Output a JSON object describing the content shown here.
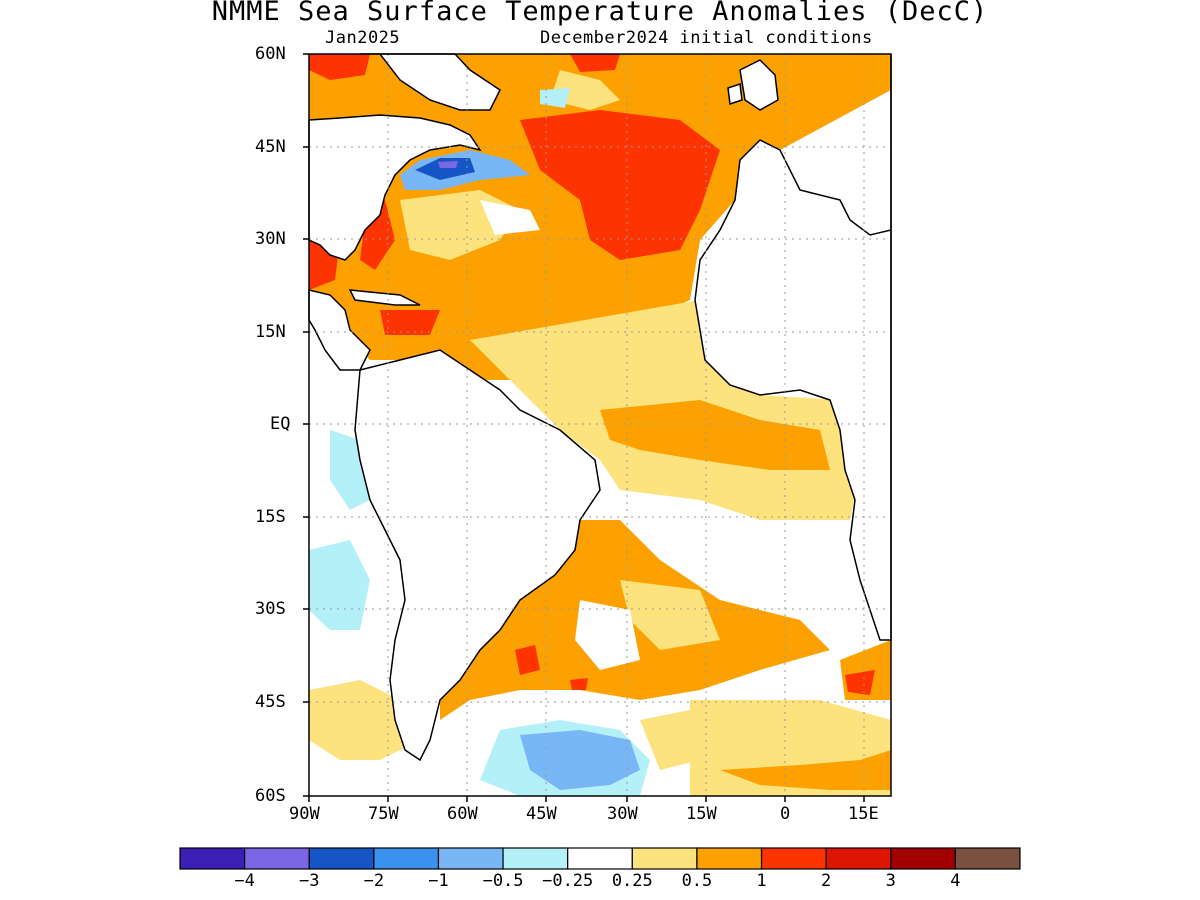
{
  "title": "NMME Sea Surface Temperature Anomalies (DecC)",
  "subtitle_left": "Jan2025",
  "subtitle_right": "December2024 initial conditions",
  "map": {
    "lat_range": [
      -60,
      60
    ],
    "lon_range": [
      -90,
      20
    ],
    "lat_ticks": [
      "60N",
      "45N",
      "30N",
      "15N",
      "EQ",
      "15S",
      "30S",
      "45S",
      "60S"
    ],
    "lon_ticks": [
      "90W",
      "75W",
      "60W",
      "45W",
      "30W",
      "15W",
      "0",
      "15E"
    ],
    "grid": "dotted"
  },
  "colorbar": {
    "colors": [
      "#3b1fb4",
      "#7b67e6",
      "#1655c6",
      "#3b92ee",
      "#78b6f6",
      "#b4f0f8",
      "#ffffff",
      "#fde37d",
      "#fda100",
      "#fd3300",
      "#dc1600",
      "#a00000",
      "#7a5040"
    ],
    "labels": [
      "−4",
      "−3",
      "−2",
      "−1",
      "−0.5",
      "−0.25",
      "0.25",
      "0.5",
      "1",
      "2",
      "3",
      "4"
    ]
  }
}
